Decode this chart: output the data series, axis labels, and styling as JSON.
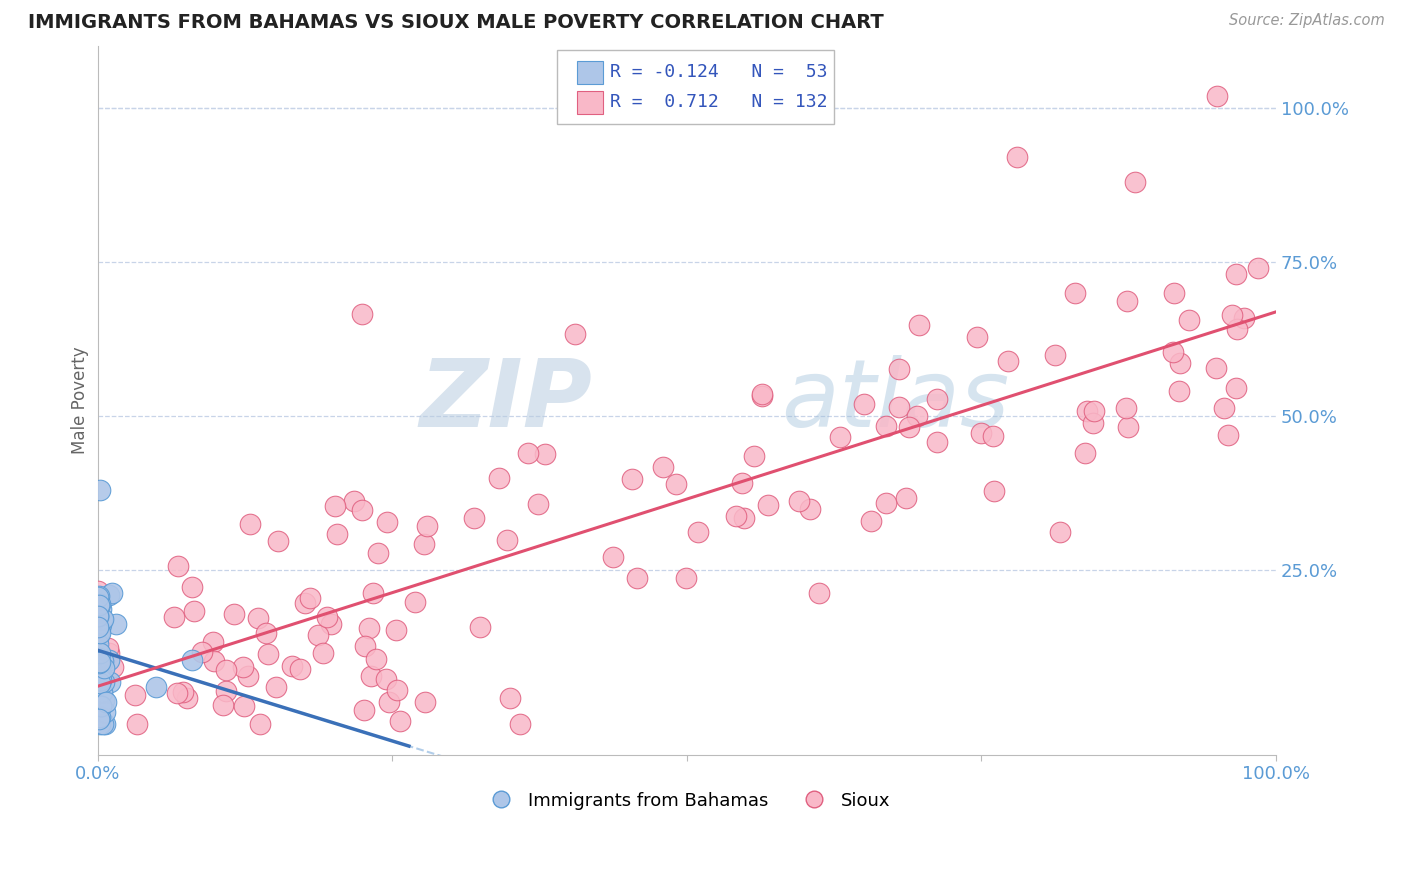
{
  "title": "IMMIGRANTS FROM BAHAMAS VS SIOUX MALE POVERTY CORRELATION CHART",
  "source": "Source: ZipAtlas.com",
  "ylabel": "Male Poverty",
  "R1": -0.124,
  "N1": 53,
  "R2": 0.712,
  "N2": 132,
  "color_blue_fill": "#aec6e8",
  "color_blue_edge": "#5b9bd5",
  "color_pink_fill": "#f9b8c8",
  "color_pink_edge": "#e06080",
  "color_blue_line": "#3a70b8",
  "color_pink_line": "#e05070",
  "color_blue_dash": "#90b8e0",
  "watermark_color": "#d0dff0",
  "legend_label1": "Immigrants from Bahamas",
  "legend_label2": "Sioux",
  "y_tick_vals": [
    0.25,
    0.5,
    0.75,
    1.0
  ],
  "y_tick_labels": [
    "25.0%",
    "50.0%",
    "75.0%",
    "100.0%"
  ]
}
